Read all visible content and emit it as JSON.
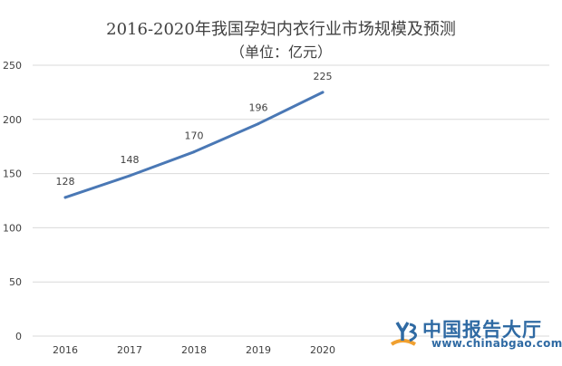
{
  "chart_data": {
    "type": "line",
    "title": "2016-2020年我国孕妇内衣行业市场规模及预测",
    "subtitle": "（单位：亿元）",
    "xlabel": "",
    "ylabel": "",
    "categories": [
      "2016",
      "2017",
      "2018",
      "2019",
      "2020"
    ],
    "series": [
      {
        "values": [
          128,
          148,
          170,
          196,
          225
        ]
      }
    ],
    "ylim": [
      0,
      250
    ],
    "yticks": [
      0,
      50,
      100,
      150,
      200,
      250
    ],
    "grid": true,
    "legend": "none",
    "line_color": "#4a78b5",
    "grid_color": "#d9d9d9"
  },
  "watermark": {
    "name": "中国报告大厅",
    "url": "www.chinabgao.com",
    "color": "#2f6aa3",
    "accent": "#f0a030"
  }
}
